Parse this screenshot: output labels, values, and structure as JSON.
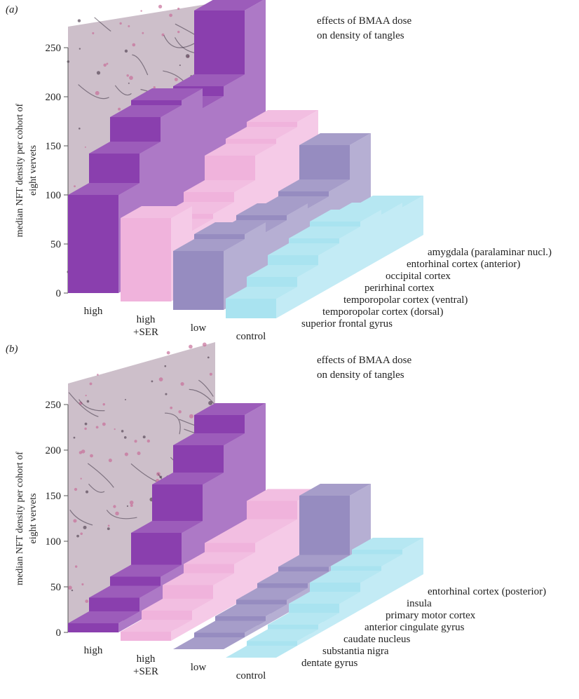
{
  "chart_data": [
    {
      "type": "bar3d",
      "label": "(a)",
      "title": "effects of BMAA dose on density of tangles",
      "y_label": "median NFT density per cohort of eight vervets",
      "categories": [
        "superior frontal gyrus",
        "temporopolar cortex (dorsal)",
        "temporopolar cortex (ventral)",
        "perirhinal cortex",
        "occipital cortex",
        "entorhinal cortex (anterior)",
        "amygdala (paralaminar nucl.)"
      ],
      "series": [
        {
          "name": "high",
          "color": "#8a3fae",
          "values": [
            100,
            130,
            155,
            160,
            140,
            150,
            215
          ]
        },
        {
          "name": "high +SER",
          "color": "#f0b3dc",
          "values": [
            85,
            60,
            65,
            75,
            100,
            105,
            110
          ]
        },
        {
          "name": "low",
          "color": "#968cc0",
          "values": [
            60,
            65,
            55,
            60,
            55,
            60,
            95
          ]
        },
        {
          "name": "control",
          "color": "#a9e3f0",
          "values": [
            20,
            30,
            40,
            45,
            50,
            45,
            40
          ]
        }
      ],
      "ylim": [
        0,
        250
      ],
      "yticks": [
        0,
        50,
        100,
        150,
        200,
        250
      ]
    },
    {
      "type": "bar3d",
      "label": "(b)",
      "title": "effects of BMAA dose on density of tangles",
      "y_label": "median NFT density per cohort of eight vervets",
      "categories": [
        "dentate gyrus",
        "substantia nigra",
        "caudate nucleus",
        "anterior cingulate gyrus",
        "primary motor cortex",
        "insula",
        "entorhinal cortex (posterior)"
      ],
      "series": [
        {
          "name": "high",
          "color": "#8a3fae",
          "values": [
            10,
            25,
            35,
            70,
            110,
            140,
            160
          ]
        },
        {
          "name": "high +SER",
          "color": "#f0b3dc",
          "values": [
            10,
            20,
            35,
            45,
            55,
            55,
            75
          ]
        },
        {
          "name": "low",
          "color": "#968cc0",
          "values": [
            0,
            5,
            10,
            15,
            20,
            25,
            90
          ]
        },
        {
          "name": "control",
          "color": "#a9e3f0",
          "values": [
            0,
            5,
            10,
            20,
            30,
            35,
            40
          ]
        }
      ],
      "ylim": [
        0,
        250
      ],
      "yticks": [
        0,
        50,
        100,
        150,
        200,
        250
      ]
    }
  ]
}
